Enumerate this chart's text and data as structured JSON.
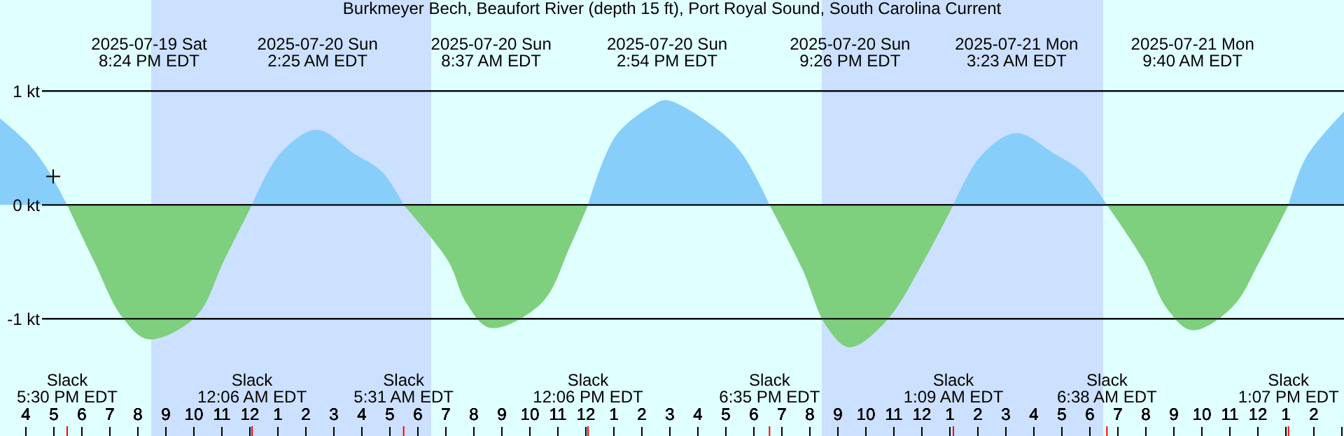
{
  "chart_data": {
    "type": "area",
    "title": "Burkmeyer Bech, Beaufort River (depth 15 ft), Port Royal Sound, South Carolina Current",
    "xlim": [
      "2025-07-19T15:06",
      "2025-07-21T15:06"
    ],
    "ylim": [
      -2.03,
      1.8
    ],
    "yticks": [
      {
        "value": -1,
        "label": "-1 kt"
      },
      {
        "value": 0,
        "label": "0 kt"
      },
      {
        "value": 1,
        "label": "1 kt"
      }
    ],
    "xticks": [
      {
        "value": "2025-07-19T16:00",
        "label": "4"
      },
      {
        "value": "2025-07-19T17:00",
        "label": "5"
      },
      {
        "value": "2025-07-19T18:00",
        "label": "6"
      },
      {
        "value": "2025-07-19T19:00",
        "label": "7"
      },
      {
        "value": "2025-07-19T20:00",
        "label": "8"
      },
      {
        "value": "2025-07-19T21:00",
        "label": "9"
      },
      {
        "value": "2025-07-19T22:00",
        "label": "10"
      },
      {
        "value": "2025-07-19T23:00",
        "label": "11"
      },
      {
        "value": "2025-07-20T00:00",
        "label": "12"
      },
      {
        "value": "2025-07-20T01:00",
        "label": "1"
      },
      {
        "value": "2025-07-20T02:00",
        "label": "2"
      },
      {
        "value": "2025-07-20T03:00",
        "label": "3"
      },
      {
        "value": "2025-07-20T04:00",
        "label": "4"
      },
      {
        "value": "2025-07-20T05:00",
        "label": "5"
      },
      {
        "value": "2025-07-20T06:00",
        "label": "6"
      },
      {
        "value": "2025-07-20T07:00",
        "label": "7"
      },
      {
        "value": "2025-07-20T08:00",
        "label": "8"
      },
      {
        "value": "2025-07-20T09:00",
        "label": "9"
      },
      {
        "value": "2025-07-20T10:00",
        "label": "10"
      },
      {
        "value": "2025-07-20T11:00",
        "label": "11"
      },
      {
        "value": "2025-07-20T12:00",
        "label": "12"
      },
      {
        "value": "2025-07-20T13:00",
        "label": "1"
      },
      {
        "value": "2025-07-20T14:00",
        "label": "2"
      },
      {
        "value": "2025-07-20T15:00",
        "label": "3"
      },
      {
        "value": "2025-07-20T16:00",
        "label": "4"
      },
      {
        "value": "2025-07-20T17:00",
        "label": "5"
      },
      {
        "value": "2025-07-20T18:00",
        "label": "6"
      },
      {
        "value": "2025-07-20T19:00",
        "label": "7"
      },
      {
        "value": "2025-07-20T20:00",
        "label": "8"
      },
      {
        "value": "2025-07-20T21:00",
        "label": "9"
      },
      {
        "value": "2025-07-20T22:00",
        "label": "10"
      },
      {
        "value": "2025-07-20T23:00",
        "label": "11"
      },
      {
        "value": "2025-07-21T00:00",
        "label": "12"
      },
      {
        "value": "2025-07-21T01:00",
        "label": "1"
      },
      {
        "value": "2025-07-21T02:00",
        "label": "2"
      },
      {
        "value": "2025-07-21T03:00",
        "label": "3"
      },
      {
        "value": "2025-07-21T04:00",
        "label": "4"
      },
      {
        "value": "2025-07-21T05:00",
        "label": "5"
      },
      {
        "value": "2025-07-21T06:00",
        "label": "6"
      },
      {
        "value": "2025-07-21T07:00",
        "label": "7"
      },
      {
        "value": "2025-07-21T08:00",
        "label": "8"
      },
      {
        "value": "2025-07-21T09:00",
        "label": "9"
      },
      {
        "value": "2025-07-21T10:00",
        "label": "10"
      },
      {
        "value": "2025-07-21T11:00",
        "label": "11"
      },
      {
        "value": "2025-07-21T12:00",
        "label": "12"
      },
      {
        "value": "2025-07-21T13:00",
        "label": "1"
      },
      {
        "value": "2025-07-21T14:00",
        "label": "2"
      },
      {
        "value": "2025-07-21T15:00",
        "label": null
      }
    ],
    "x2lim": [
      "2025-07-19T15:06",
      "2025-07-21T15:06"
    ],
    "x2ticks": [
      {
        "value": "2025-07-19T20:24",
        "label": "2025-07-19 Sat\n8:24 PM EDT"
      },
      {
        "value": "2025-07-20T02:25",
        "label": "2025-07-20 Sun\n2:25 AM EDT"
      },
      {
        "value": "2025-07-20T08:37",
        "label": "2025-07-20 Sun\n8:37 AM EDT"
      },
      {
        "value": "2025-07-20T14:54",
        "label": "2025-07-20 Sun\n2:54 PM EDT"
      },
      {
        "value": "2025-07-20T21:26",
        "label": "2025-07-20 Sun\n9:26 PM EDT"
      },
      {
        "value": "2025-07-21T03:23",
        "label": "2025-07-21 Mon\n3:23 AM EDT"
      },
      {
        "value": "2025-07-21T09:40",
        "label": "2025-07-21 Mon\n9:40 AM EDT"
      }
    ],
    "grid": "y",
    "bands": [
      {
        "axis": "x",
        "from": "2025-07-19T20:30",
        "to": "2025-07-20T06:30",
        "color": "#cce0ff"
      },
      {
        "axis": "x",
        "from": "2025-07-20T20:27",
        "to": "2025-07-21T06:30",
        "color": "#cce0ff"
      }
    ],
    "series": [
      {
        "color": "#87cefa",
        "x": [
          "2025-07-19T15:06",
          "2025-07-19T16:06",
          "2025-07-19T16:45",
          "2025-07-19T17:30",
          "2025-07-19T20:24",
          "2025-07-20T00:06",
          "2025-07-20T01:06",
          "2025-07-20T02:25",
          "2025-07-20T03:45",
          "2025-07-20T04:45",
          "2025-07-20T05:31",
          "2025-07-20T08:37",
          "2025-07-20T12:06",
          "2025-07-20T13:06",
          "2025-07-20T14:27",
          "2025-07-20T14:54",
          "2025-07-20T16:45",
          "2025-07-20T17:36",
          "2025-07-20T18:15",
          "2025-07-20T18:35",
          "2025-07-20T21:26",
          "2025-07-21T01:09",
          "2025-07-21T02:06",
          "2025-07-21T03:23",
          "2025-07-21T04:45",
          "2025-07-21T05:45",
          "2025-07-21T06:38",
          "2025-07-21T09:40",
          "2025-07-21T13:07",
          "2025-07-21T13:45",
          "2025-07-21T15:06"
        ],
        "values": [
          0.76,
          0.54,
          0.33,
          0,
          null,
          0,
          0.45,
          0.66,
          0.45,
          0.29,
          0,
          null,
          0,
          0.61,
          0.88,
          0.92,
          0.66,
          0.45,
          0.17,
          0,
          null,
          0,
          0.42,
          0.63,
          0.45,
          0.29,
          0,
          null,
          0,
          0.42,
          0.82
        ]
      },
      {
        "color": "#7ecf7e",
        "x": [
          "2025-07-19T17:30",
          "2025-07-19T18:27",
          "2025-07-19T19:27",
          "2025-07-19T20:24",
          "2025-07-19T22:06",
          "2025-07-19T23:06",
          "2025-07-20T00:06",
          "2025-07-20T02:25",
          "2025-07-20T05:31",
          "2025-07-20T07:06",
          "2025-07-20T07:45",
          "2025-07-20T08:37",
          "2025-07-20T10:27",
          "2025-07-20T11:27",
          "2025-07-20T12:06",
          "2025-07-20T14:54",
          "2025-07-20T18:35",
          "2025-07-20T19:45",
          "2025-07-20T20:36",
          "2025-07-20T21:26",
          "2025-07-20T22:45",
          "2025-07-21T00:06",
          "2025-07-21T01:09",
          "2025-07-21T03:23",
          "2025-07-21T06:38",
          "2025-07-21T07:57",
          "2025-07-21T08:45",
          "2025-07-21T09:40",
          "2025-07-21T11:06",
          "2025-07-21T12:06",
          "2025-07-21T13:07"
        ],
        "values": [
          0,
          -0.49,
          -0.98,
          -1.18,
          -0.98,
          -0.49,
          0,
          null,
          0,
          -0.49,
          -0.86,
          -1.08,
          -0.86,
          -0.37,
          0,
          null,
          0,
          -0.56,
          -1.06,
          -1.25,
          -1.02,
          -0.49,
          0,
          null,
          0,
          -0.49,
          -0.9,
          -1.1,
          -0.9,
          -0.49,
          0
        ]
      },
      {
        "type": "scatter",
        "color": "#000000",
        "marker": "cross",
        "x": [
          "2025-07-19T17:00"
        ],
        "values": [
          0.25
        ]
      }
    ],
    "annotations": [
      "Slack\n5:30 PM EDT",
      "Slack\n12:06 AM EDT",
      "Slack\n5:31 AM EDT",
      "Slack\n12:06 PM EDT",
      "Slack\n6:35 PM EDT",
      "Slack\n1:09 AM EDT",
      "Slack\n6:38 AM EDT",
      "Slack\n1:07 PM EDT"
    ]
  }
}
